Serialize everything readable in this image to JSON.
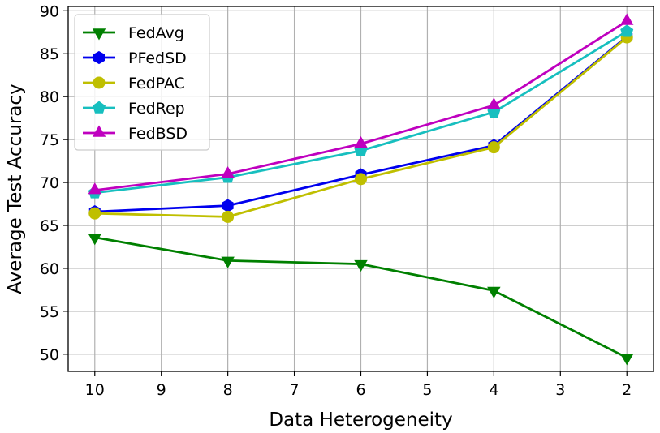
{
  "chart_data": {
    "type": "line",
    "title": "",
    "xlabel": "Data Heterogeneity",
    "ylabel": "Average Test Accuracy",
    "xlim": [
      10.4,
      1.6
    ],
    "ylim": [
      48,
      90.5
    ],
    "xticks": [
      "10",
      "9",
      "8",
      "7",
      "6",
      "5",
      "4",
      "3",
      "2"
    ],
    "yticks": [
      "50",
      "55",
      "60",
      "65",
      "70",
      "75",
      "80",
      "85",
      "90"
    ],
    "grid": true,
    "legend_position": "upper-left",
    "x": [
      10,
      8,
      6,
      4,
      2
    ],
    "series": [
      {
        "name": "FedAvg",
        "color": "#008000",
        "marker": "triangle-down",
        "values": [
          63.6,
          60.9,
          60.5,
          57.4,
          49.6
        ]
      },
      {
        "name": "PFedSD",
        "color": "#0000ee",
        "marker": "hexagon",
        "values": [
          66.6,
          67.3,
          70.9,
          74.3,
          87.0
        ]
      },
      {
        "name": "FedPAC",
        "color": "#bfbf00",
        "marker": "circle",
        "values": [
          66.4,
          66.0,
          70.4,
          74.1,
          86.9
        ]
      },
      {
        "name": "FedRep",
        "color": "#17bfbf",
        "marker": "pentagon",
        "values": [
          68.8,
          70.6,
          73.7,
          78.2,
          87.6
        ]
      },
      {
        "name": "FedBSD",
        "color": "#bf00bf",
        "marker": "triangle-up",
        "values": [
          69.1,
          71.0,
          74.5,
          79.0,
          88.8
        ]
      }
    ]
  }
}
